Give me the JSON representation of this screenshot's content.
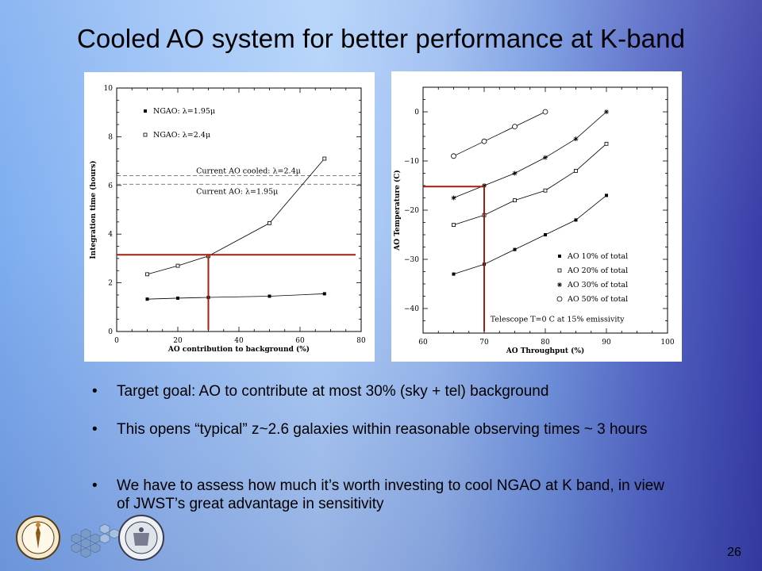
{
  "slide": {
    "title": "Cooled AO system for better performance at K-band",
    "number": "26",
    "bullets": [
      "Target goal: AO to contribute at most 30% (sky + tel) background",
      "This opens “typical” z~2.6 galaxies within reasonable observing times ~ 3 hours",
      "We have to assess how much it’s worth investing to cool NGAO at K band, in view of JWST’s great advantage in sensitivity"
    ],
    "bullet_char": "•"
  },
  "colors": {
    "highlight_line": "#a02010",
    "background_left": "#80b0f0",
    "background_right": "#3a3ea8"
  },
  "logos": [
    "caltech-seal-icon",
    "keck-mirror-icon",
    "uc-seal-icon"
  ],
  "chart_data": [
    {
      "type": "scatter",
      "xlabel": "AO contribution to background (%)",
      "ylabel": "Integration time (hours)",
      "xlim": [
        0,
        80
      ],
      "ylim": [
        0,
        10
      ],
      "xticks": [
        "0",
        "20",
        "40",
        "60",
        "80"
      ],
      "yticks": [
        "0",
        "2",
        "4",
        "6",
        "8",
        "10"
      ],
      "series": [
        {
          "name": "NGAO: λ=1.95μ",
          "marker": "filled-square",
          "x": [
            10,
            20,
            30,
            50,
            68
          ],
          "y": [
            1.33,
            1.37,
            1.4,
            1.45,
            1.55
          ]
        },
        {
          "name": "NGAO: λ=2.4μ",
          "marker": "open-square",
          "x": [
            10,
            20,
            30,
            50,
            68
          ],
          "y": [
            2.35,
            2.7,
            3.1,
            4.45,
            7.1
          ]
        }
      ],
      "reference_lines": [
        {
          "label": "Current AO cooled: λ=2.4μ",
          "y": 6.4
        },
        {
          "label": "Current AO: λ=1.95μ",
          "y": 6.05
        }
      ],
      "highlight": {
        "x": 30,
        "y": 3.15
      },
      "legend_position": "top-left"
    },
    {
      "type": "scatter",
      "xlabel": "AO Throughput (%)",
      "ylabel": "AO Temperature (C)",
      "xlim": [
        60,
        100
      ],
      "ylim": [
        -45,
        5
      ],
      "xticks": [
        "60",
        "70",
        "80",
        "90",
        "100"
      ],
      "yticks": [
        "0",
        "−10",
        "−20",
        "−30",
        "−40"
      ],
      "series": [
        {
          "name": "AO 10% of total",
          "marker": "filled-square",
          "x": [
            65,
            70,
            75,
            80,
            85,
            90
          ],
          "y": [
            -33,
            -31,
            -28,
            -25,
            -22,
            -17
          ]
        },
        {
          "name": "AO 20% of total",
          "marker": "open-square",
          "x": [
            65,
            70,
            75,
            80,
            85,
            90
          ],
          "y": [
            -23,
            -21,
            -18,
            -16,
            -12,
            -6.5
          ]
        },
        {
          "name": "AO 30% of total",
          "marker": "asterisk",
          "x": [
            65,
            70,
            75,
            80,
            85,
            90
          ],
          "y": [
            -17.5,
            -15,
            -12.5,
            -9.3,
            -5.5,
            0
          ]
        },
        {
          "name": "AO 50% of total",
          "marker": "open-circle",
          "x": [
            65,
            70,
            75,
            80
          ],
          "y": [
            -9,
            -6,
            -3,
            0
          ]
        }
      ],
      "annotation": "Telescope T=0 C at 15% emissivity",
      "highlight": {
        "x": 70,
        "y": -15.2
      },
      "legend_position": "bottom-right"
    }
  ]
}
